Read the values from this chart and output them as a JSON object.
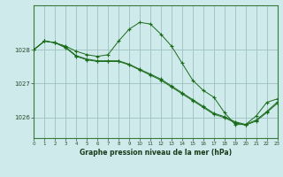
{
  "title": "Graphe pression niveau de la mer (hPa)",
  "bg_color": "#ceeaea",
  "grid_color": "#9dbfbf",
  "line_color": "#1a6b1a",
  "xlim": [
    0,
    23
  ],
  "ylim": [
    1025.4,
    1029.3
  ],
  "yticks": [
    1026,
    1027,
    1028
  ],
  "xticks": [
    0,
    1,
    2,
    3,
    4,
    5,
    6,
    7,
    8,
    9,
    10,
    11,
    12,
    13,
    14,
    15,
    16,
    17,
    18,
    19,
    20,
    21,
    22,
    23
  ],
  "series1_x": [
    0,
    1,
    2,
    3,
    4,
    5,
    6,
    7,
    8,
    9,
    10,
    11,
    12,
    13,
    14,
    15,
    16,
    17,
    18,
    19,
    20,
    21,
    22,
    23
  ],
  "series1_y": [
    1028.0,
    1028.25,
    1028.2,
    1028.1,
    1027.95,
    1027.85,
    1027.8,
    1027.85,
    1028.25,
    1028.6,
    1028.8,
    1028.75,
    1028.45,
    1028.1,
    1027.6,
    1027.1,
    1026.8,
    1026.6,
    1026.15,
    1025.8,
    1025.8,
    1026.05,
    1026.45,
    1026.55
  ],
  "series2_x": [
    0,
    1,
    2,
    3,
    4,
    5,
    6,
    7,
    8,
    9,
    10,
    11,
    12,
    13,
    14,
    15,
    16,
    17,
    18,
    19,
    20,
    21,
    22,
    23
  ],
  "series2_y": [
    1028.0,
    1028.25,
    1028.2,
    1028.05,
    1027.8,
    1027.7,
    1027.65,
    1027.65,
    1027.65,
    1027.55,
    1027.4,
    1027.25,
    1027.1,
    1026.9,
    1026.7,
    1026.5,
    1026.3,
    1026.1,
    1026.0,
    1025.85,
    1025.78,
    1025.9,
    1026.15,
    1026.42
  ],
  "series3_x": [
    0,
    1,
    2,
    3,
    4,
    5,
    6,
    7,
    8,
    9,
    10,
    11,
    12,
    13,
    14,
    15,
    16,
    17,
    18,
    19,
    20,
    21,
    22,
    23
  ],
  "series3_y": [
    1028.0,
    1028.25,
    1028.2,
    1028.07,
    1027.82,
    1027.72,
    1027.67,
    1027.67,
    1027.67,
    1027.57,
    1027.42,
    1027.28,
    1027.13,
    1026.93,
    1026.73,
    1026.53,
    1026.33,
    1026.13,
    1026.03,
    1025.88,
    1025.8,
    1025.93,
    1026.18,
    1026.46
  ]
}
